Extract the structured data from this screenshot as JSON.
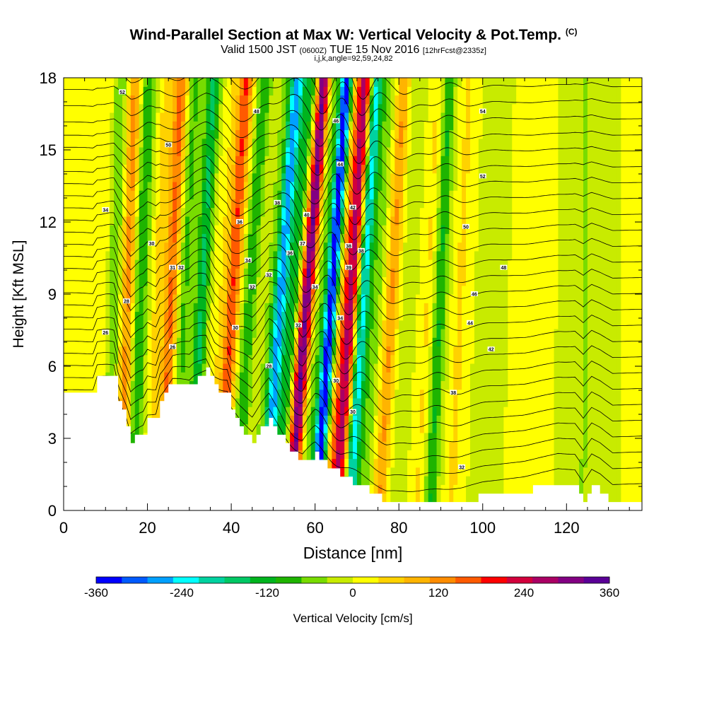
{
  "title": "Wind-Parallel Section at Max W: Vertical Velocity & Pot.Temp.",
  "title_tag": "(C)",
  "subtitle_main": "Valid 1500 JST",
  "subtitle_utc": "(0600Z)",
  "subtitle_date": "TUE 15 Nov 2016",
  "subtitle_fcst": "[12hrFcst@2335z]",
  "subtitle2": "i,j,k,angle=92,59,24,82",
  "chart_data": {
    "type": "heatmap",
    "xlabel": "Distance [nm]",
    "ylabel": "Height [Kft MSL]",
    "xlim": [
      0,
      138
    ],
    "ylim": [
      0,
      18
    ],
    "x_ticks": [
      0,
      20,
      40,
      60,
      80,
      100,
      120
    ],
    "y_ticks": [
      0,
      3,
      6,
      9,
      12,
      15,
      18
    ],
    "colorbar": {
      "label": "Vertical Velocity [cm/s]",
      "range": [
        -360,
        360
      ],
      "tick_labels": [
        "-360",
        "-240",
        "-120",
        "0",
        "120",
        "240",
        "360"
      ],
      "colors": [
        "#0000ff",
        "#005aff",
        "#00a0ff",
        "#00ffff",
        "#00d2a0",
        "#00c864",
        "#00b41e",
        "#1eb400",
        "#78dc00",
        "#c8eb00",
        "#ffff00",
        "#ffd200",
        "#ffb400",
        "#ff8c00",
        "#ff5a00",
        "#ff0000",
        "#d2003c",
        "#aa0064",
        "#820082",
        "#5a0096"
      ]
    },
    "wave_bands": [
      {
        "x": 8,
        "w": 30
      },
      {
        "x": 11,
        "w": -70
      },
      {
        "x": 14,
        "w": 120
      },
      {
        "x": 17,
        "w": -110
      },
      {
        "x": 21,
        "w": 50
      },
      {
        "x": 24,
        "w": 150
      },
      {
        "x": 27,
        "w": -80
      },
      {
        "x": 31,
        "w": -150
      },
      {
        "x": 35,
        "w": 30
      },
      {
        "x": 38,
        "w": 180
      },
      {
        "x": 42,
        "w": -100
      },
      {
        "x": 46,
        "w": -30
      },
      {
        "x": 49,
        "w": -280
      },
      {
        "x": 52,
        "w": -120
      },
      {
        "x": 55,
        "w": 330
      },
      {
        "x": 58,
        "w": -50
      },
      {
        "x": 61,
        "w": -360
      },
      {
        "x": 64,
        "w": 100
      },
      {
        "x": 66,
        "w": 250
      },
      {
        "x": 69,
        "w": -230
      },
      {
        "x": 72,
        "w": -60
      },
      {
        "x": 76,
        "w": 110
      },
      {
        "x": 80,
        "w": -20
      },
      {
        "x": 85,
        "w": 40
      },
      {
        "x": 88,
        "w": -110
      },
      {
        "x": 93,
        "w": 45
      },
      {
        "x": 100,
        "w": -25
      },
      {
        "x": 110,
        "w": 15
      },
      {
        "x": 124,
        "w": -40
      }
    ],
    "terrain": [
      [
        0,
        4.9
      ],
      [
        7,
        4.9
      ],
      [
        8,
        5.5
      ],
      [
        12,
        5.5
      ],
      [
        13,
        4.6
      ],
      [
        15,
        3.6
      ],
      [
        16,
        2.9
      ],
      [
        19,
        3.3
      ],
      [
        20,
        3.8
      ],
      [
        22,
        3.9
      ],
      [
        23,
        4.7
      ],
      [
        26,
        5.4
      ],
      [
        30,
        5.2
      ],
      [
        31,
        5.4
      ],
      [
        34,
        5.8
      ],
      [
        36,
        5.1
      ],
      [
        39,
        4.9
      ],
      [
        40,
        4.1
      ],
      [
        42,
        3.5
      ],
      [
        44,
        3.1
      ],
      [
        45,
        2.9
      ],
      [
        47,
        3.4
      ],
      [
        49,
        3.8
      ],
      [
        50,
        3.5
      ],
      [
        53,
        2.8
      ],
      [
        55,
        2.4
      ],
      [
        57,
        2.0
      ],
      [
        60,
        2.3
      ],
      [
        63,
        1.9
      ],
      [
        66,
        1.5
      ],
      [
        70,
        1.1
      ],
      [
        73,
        0.8
      ],
      [
        77,
        0.4
      ],
      [
        82,
        0.3
      ],
      [
        88,
        0.3
      ],
      [
        95,
        0.4
      ],
      [
        100,
        0.6
      ],
      [
        110,
        0.8
      ],
      [
        118,
        1.1
      ],
      [
        122,
        1.0
      ],
      [
        124,
        0.4
      ],
      [
        125,
        0.7
      ],
      [
        126,
        1.0
      ],
      [
        128,
        0.8
      ],
      [
        131,
        0.3
      ],
      [
        138,
        0.3
      ]
    ],
    "isentrope_labels": [
      {
        "x": 14,
        "y": 17.4,
        "t": "52"
      },
      {
        "x": 25,
        "y": 15.2,
        "t": "50"
      },
      {
        "x": 46,
        "y": 16.6,
        "t": "48"
      },
      {
        "x": 65,
        "y": 16.2,
        "t": "46"
      },
      {
        "x": 100,
        "y": 16.6,
        "t": "54"
      },
      {
        "x": 66,
        "y": 14.4,
        "t": "44"
      },
      {
        "x": 100,
        "y": 13.9,
        "t": "52"
      },
      {
        "x": 10,
        "y": 12.5,
        "t": "34"
      },
      {
        "x": 42,
        "y": 12.0,
        "t": "36"
      },
      {
        "x": 51,
        "y": 12.8,
        "t": "38"
      },
      {
        "x": 58,
        "y": 12.3,
        "t": "40"
      },
      {
        "x": 69,
        "y": 12.6,
        "t": "42"
      },
      {
        "x": 96,
        "y": 11.8,
        "t": "50"
      },
      {
        "x": 21,
        "y": 11.1,
        "t": "30"
      },
      {
        "x": 26,
        "y": 10.1,
        "t": "31"
      },
      {
        "x": 28,
        "y": 10.1,
        "t": "32"
      },
      {
        "x": 44,
        "y": 10.4,
        "t": "34"
      },
      {
        "x": 54,
        "y": 10.7,
        "t": "36"
      },
      {
        "x": 57,
        "y": 11.1,
        "t": "37"
      },
      {
        "x": 68,
        "y": 11.0,
        "t": "38"
      },
      {
        "x": 71,
        "y": 10.8,
        "t": "38"
      },
      {
        "x": 68,
        "y": 10.1,
        "t": "39"
      },
      {
        "x": 105,
        "y": 10.1,
        "t": "48"
      },
      {
        "x": 49,
        "y": 9.8,
        "t": "32"
      },
      {
        "x": 45,
        "y": 9.3,
        "t": "32"
      },
      {
        "x": 60,
        "y": 9.3,
        "t": "34"
      },
      {
        "x": 98,
        "y": 9.0,
        "t": "46"
      },
      {
        "x": 15,
        "y": 8.7,
        "t": "28"
      },
      {
        "x": 66,
        "y": 8.0,
        "t": "34"
      },
      {
        "x": 97,
        "y": 7.8,
        "t": "44"
      },
      {
        "x": 10,
        "y": 7.4,
        "t": "26"
      },
      {
        "x": 41,
        "y": 7.6,
        "t": "30"
      },
      {
        "x": 56,
        "y": 7.7,
        "t": "32"
      },
      {
        "x": 102,
        "y": 6.7,
        "t": "42"
      },
      {
        "x": 26,
        "y": 6.8,
        "t": "26"
      },
      {
        "x": 49,
        "y": 6.0,
        "t": "28"
      },
      {
        "x": 65,
        "y": 5.4,
        "t": "30"
      },
      {
        "x": 93,
        "y": 4.9,
        "t": "38"
      },
      {
        "x": 69,
        "y": 4.1,
        "t": "30"
      },
      {
        "x": 95,
        "y": 1.8,
        "t": "32"
      }
    ]
  }
}
